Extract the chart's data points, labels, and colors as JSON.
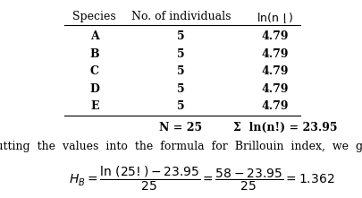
{
  "species": [
    "A",
    "B",
    "C",
    "D",
    "E"
  ],
  "individuals": [
    "5",
    "5",
    "5",
    "5",
    "5"
  ],
  "ln_values": [
    "4.79",
    "4.79",
    "4.79",
    "4.79",
    "4.79"
  ],
  "header_species": "Species",
  "header_individuals": "No. of individuals",
  "header_ln": "ln(n !)",
  "header_ln_sub": "i",
  "total_n": "N = 25",
  "total_ln": "Σ  ln(n!) = 23.95",
  "body_text": "Putting  the  values  into  the  formula  for  Brillouin  index,  we  get",
  "bg_color": "#ffffff",
  "text_color": "#000000",
  "font_size": 9
}
